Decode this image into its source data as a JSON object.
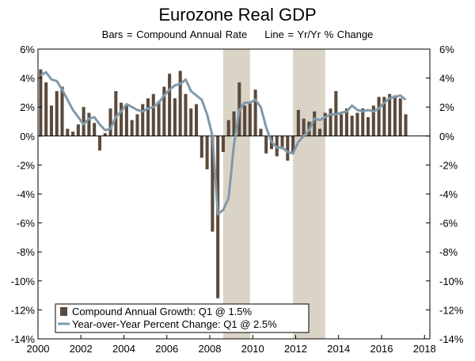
{
  "chart_data": {
    "type": "bar",
    "title": "Eurozone Real GDP",
    "subtitle_bars": "Bars = Compound Annual Rate",
    "subtitle_line": "Line = Yr/Yr % Change",
    "ylim": [
      -14,
      6
    ],
    "y_ticks": [
      6,
      4,
      2,
      0,
      -2,
      -4,
      -6,
      -8,
      -10,
      -12,
      -14
    ],
    "y_tick_labels": [
      "6%",
      "4%",
      "2%",
      "0%",
      "-2%",
      "-4%",
      "-6%",
      "-8%",
      "-10%",
      "-12%",
      "-14%"
    ],
    "x_range": [
      2000,
      2018.25
    ],
    "x_ticks": [
      2000,
      2002,
      2004,
      2006,
      2008,
      2010,
      2012,
      2014,
      2016,
      2018
    ],
    "x_tick_labels": [
      "2000",
      "2002",
      "2004",
      "2006",
      "2008",
      "2010",
      "2012",
      "2014",
      "2016",
      "2018"
    ],
    "recessions": [
      {
        "start": 2008.625,
        "end": 2009.875
      },
      {
        "start": 2011.875,
        "end": 2013.375
      }
    ],
    "colors": {
      "bars": "#5a4a3c",
      "line": "#8099aa",
      "recession": "#d9d4c5"
    },
    "series": [
      {
        "name": "Compound Annual Growth: Q1 @ 1.5%",
        "type": "bar",
        "start": 2000.0,
        "step": 0.25,
        "values": [
          4.6,
          3.7,
          2.1,
          3.1,
          3.4,
          0.5,
          0.3,
          0.8,
          2.0,
          1.6,
          0.9,
          -1.0,
          0.2,
          1.9,
          3.1,
          2.3,
          2.1,
          1.1,
          1.5,
          2.2,
          2.6,
          2.9,
          2.4,
          3.4,
          4.3,
          2.6,
          4.5,
          2.9,
          1.9,
          2.2,
          -1.5,
          -2.3,
          -6.6,
          -11.2,
          -1.1,
          1.1,
          1.7,
          3.7,
          2.1,
          2.3,
          3.2,
          0.5,
          -1.2,
          -0.9,
          -1.4,
          -0.9,
          -1.7,
          -1.2,
          1.8,
          1.2,
          1.0,
          1.7,
          0.5,
          1.6,
          1.9,
          3.1,
          1.5,
          1.9,
          1.4,
          1.6,
          1.9,
          1.3,
          2.1,
          2.7,
          2.7,
          2.9,
          2.8,
          2.6,
          1.5
        ]
      },
      {
        "name": "Year-over-Year Percent Change: Q1 @ 2.5%",
        "type": "line",
        "start": 2000.0,
        "step": 0.25,
        "values": [
          4.2,
          4.4,
          3.9,
          3.8,
          3.2,
          2.5,
          1.8,
          1.3,
          0.8,
          1.2,
          1.3,
          0.8,
          0.4,
          0.5,
          1.3,
          1.7,
          2.2,
          2.0,
          1.8,
          1.7,
          1.9,
          2.0,
          2.3,
          2.8,
          3.2,
          3.5,
          3.6,
          3.9,
          3.1,
          2.8,
          2.5,
          1.5,
          0.0,
          -5.4,
          -5.1,
          -4.3,
          -0.6,
          1.8,
          2.3,
          2.3,
          2.5,
          2.0,
          0.6,
          -0.4,
          -0.8,
          -0.8,
          -1.1,
          -1.2,
          -0.4,
          0.0,
          0.4,
          1.2,
          1.1,
          1.3,
          1.5,
          1.5,
          1.6,
          1.7,
          2.1,
          1.8,
          1.7,
          1.8,
          1.7,
          1.9,
          2.3,
          2.6,
          2.7,
          2.8,
          2.5
        ]
      }
    ]
  }
}
